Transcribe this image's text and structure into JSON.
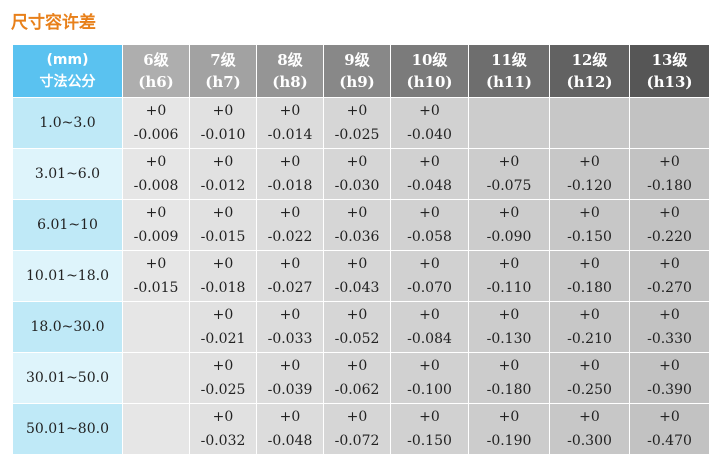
{
  "title": "尺寸容许差",
  "corner": {
    "line1": "(mm)",
    "line2": "寸法公分"
  },
  "columns": [
    {
      "grade": "6级",
      "code": "(h6)"
    },
    {
      "grade": "7级",
      "code": "(h7)"
    },
    {
      "grade": "8级",
      "code": "(h8)"
    },
    {
      "grade": "9级",
      "code": "(h9)"
    },
    {
      "grade": "10级",
      "code": "(h10)"
    },
    {
      "grade": "11级",
      "code": "(h11)"
    },
    {
      "grade": "12级",
      "code": "(h12)"
    },
    {
      "grade": "13级",
      "code": "(h13)"
    }
  ],
  "rows": [
    {
      "size": "1.0~3.0",
      "cells": [
        [
          "+0",
          "-0.006"
        ],
        [
          "+0",
          "-0.010"
        ],
        [
          "+0",
          "-0.014"
        ],
        [
          "+0",
          "-0.025"
        ],
        [
          "+0",
          "-0.040"
        ],
        null,
        null,
        null
      ]
    },
    {
      "size": "3.01~6.0",
      "cells": [
        [
          "+0",
          "-0.008"
        ],
        [
          "+0",
          "-0.012"
        ],
        [
          "+0",
          "-0.018"
        ],
        [
          "+0",
          "-0.030"
        ],
        [
          "+0",
          "-0.048"
        ],
        [
          "+0",
          "-0.075"
        ],
        [
          "+0",
          "-0.120"
        ],
        [
          "+0",
          "-0.180"
        ]
      ]
    },
    {
      "size": "6.01~10",
      "cells": [
        [
          "+0",
          "-0.009"
        ],
        [
          "+0",
          "-0.015"
        ],
        [
          "+0",
          "-0.022"
        ],
        [
          "+0",
          "-0.036"
        ],
        [
          "+0",
          "-0.058"
        ],
        [
          "+0",
          "-0.090"
        ],
        [
          "+0",
          "-0.150"
        ],
        [
          "+0",
          "-0.220"
        ]
      ]
    },
    {
      "size": "10.01~18.0",
      "cells": [
        [
          "+0",
          "-0.015"
        ],
        [
          "+0",
          "-0.018"
        ],
        [
          "+0",
          "-0.027"
        ],
        [
          "+0",
          "-0.043"
        ],
        [
          "+0",
          "-0.070"
        ],
        [
          "+0",
          "-0.110"
        ],
        [
          "+0",
          "-0.180"
        ],
        [
          "+0",
          "-0.270"
        ]
      ]
    },
    {
      "size": "18.0~30.0",
      "cells": [
        null,
        [
          "+0",
          "-0.021"
        ],
        [
          "+0",
          "-0.033"
        ],
        [
          "+0",
          "-0.052"
        ],
        [
          "+0",
          "-0.084"
        ],
        [
          "+0",
          "-0.130"
        ],
        [
          "+0",
          "-0.210"
        ],
        [
          "+0",
          "-0.330"
        ]
      ]
    },
    {
      "size": "30.01~50.0",
      "cells": [
        null,
        [
          "+0",
          "-0.025"
        ],
        [
          "+0",
          "-0.039"
        ],
        [
          "+0",
          "-0.062"
        ],
        [
          "+0",
          "-0.100"
        ],
        [
          "+0",
          "-0.180"
        ],
        [
          "+0",
          "-0.250"
        ],
        [
          "+0",
          "-0.390"
        ]
      ]
    },
    {
      "size": "50.01~80.0",
      "cells": [
        null,
        [
          "+0",
          "-0.032"
        ],
        [
          "+0",
          "-0.048"
        ],
        [
          "+0",
          "-0.072"
        ],
        [
          "+0",
          "-0.150"
        ],
        [
          "+0",
          "-0.190"
        ],
        [
          "+0",
          "-0.300"
        ],
        [
          "+0",
          "-0.470"
        ]
      ]
    }
  ],
  "colors": {
    "title": "#e8801a",
    "corner_header": "#5ac2f0",
    "column_headers": [
      "#aeaeae",
      "#a2a2a2",
      "#959595",
      "#888888",
      "#7b7b7b",
      "#6e6e6e",
      "#626262",
      "#565656"
    ],
    "column_cells": [
      "#e6e6e6",
      "#e1e1e1",
      "#dcdcdc",
      "#d6d6d6",
      "#d1d1d1",
      "#cccccc",
      "#c7c7c7",
      "#c2c2c2"
    ],
    "size_cell": "#bfe9f7",
    "size_cell_alt": "#def4fb"
  }
}
